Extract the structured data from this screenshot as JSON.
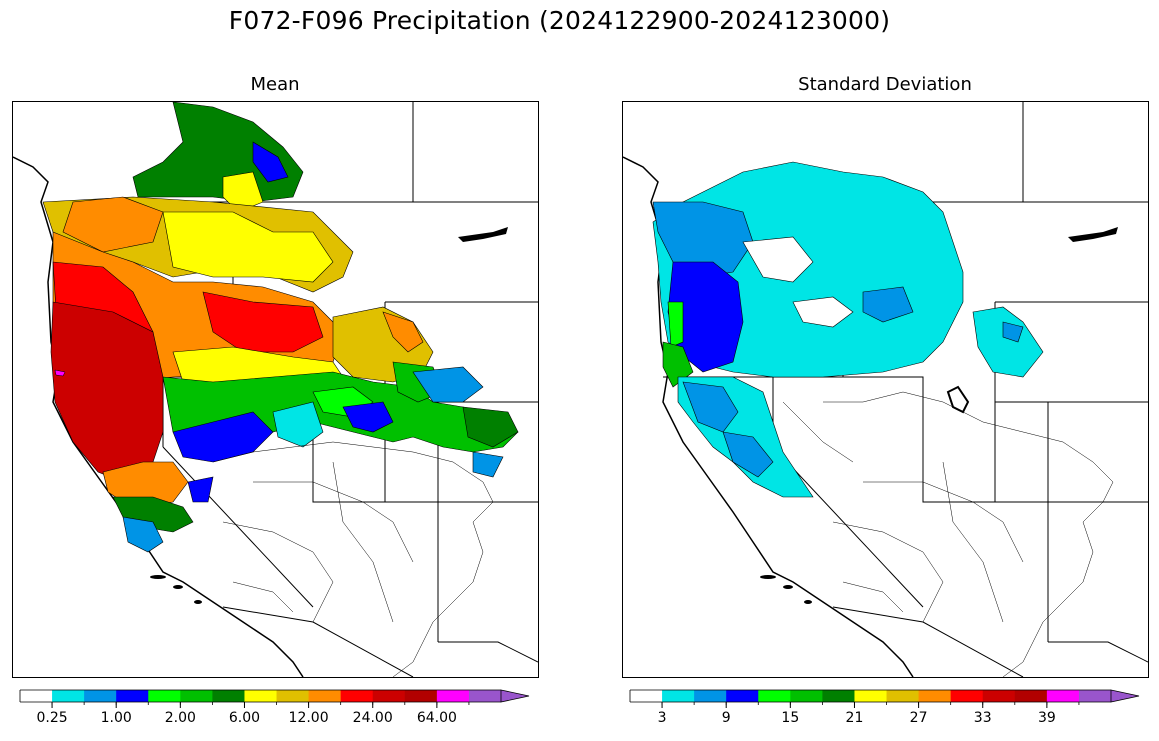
{
  "title": "F072-F096 Precipitation (2024122900-2024123000)",
  "panels": [
    {
      "id": "mean",
      "title": "Mean",
      "colorbar": {
        "colors": [
          "#ffffff",
          "#00e5e5",
          "#0094e6",
          "#0000ff",
          "#00ff00",
          "#00c000",
          "#008000",
          "#ffff00",
          "#e0c000",
          "#ff8c00",
          "#ff0000",
          "#cc0000",
          "#b20000",
          "#ff00ff",
          "#9955cc"
        ],
        "tick_labels": [
          "0.25",
          "1.00",
          "2.00",
          "6.00",
          "12.00",
          "24.00",
          "64.00"
        ],
        "extend": "max"
      }
    },
    {
      "id": "stddev",
      "title": "Standard Deviation",
      "colorbar": {
        "colors": [
          "#ffffff",
          "#00e5e5",
          "#0094e6",
          "#0000ff",
          "#00ff00",
          "#00c000",
          "#008000",
          "#ffff00",
          "#e0c000",
          "#ff8c00",
          "#ff0000",
          "#cc0000",
          "#b20000",
          "#ff00ff",
          "#9955cc"
        ],
        "tick_labels": [
          "3",
          "9",
          "15",
          "21",
          "27",
          "33",
          "39"
        ],
        "extend": "max"
      }
    }
  ]
}
